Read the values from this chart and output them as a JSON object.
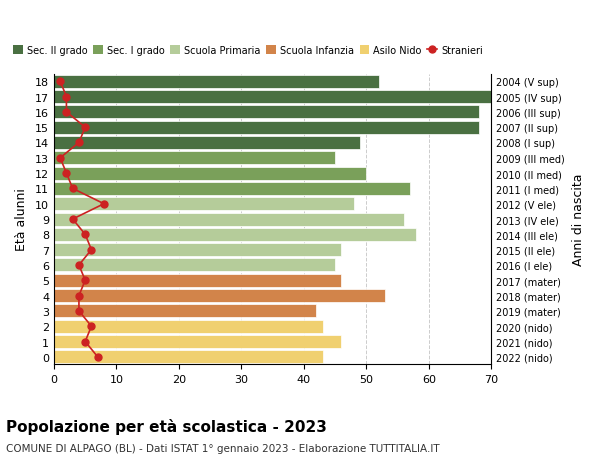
{
  "ages": [
    18,
    17,
    16,
    15,
    14,
    13,
    12,
    11,
    10,
    9,
    8,
    7,
    6,
    5,
    4,
    3,
    2,
    1,
    0
  ],
  "anni_nascita": [
    "2004 (V sup)",
    "2005 (IV sup)",
    "2006 (III sup)",
    "2007 (II sup)",
    "2008 (I sup)",
    "2009 (III med)",
    "2010 (II med)",
    "2011 (I med)",
    "2012 (V ele)",
    "2013 (IV ele)",
    "2014 (III ele)",
    "2015 (II ele)",
    "2016 (I ele)",
    "2017 (mater)",
    "2018 (mater)",
    "2019 (mater)",
    "2020 (nido)",
    "2021 (nido)",
    "2022 (nido)"
  ],
  "bar_values": [
    52,
    70,
    68,
    68,
    49,
    45,
    50,
    57,
    48,
    56,
    58,
    46,
    45,
    46,
    53,
    42,
    43,
    46,
    43
  ],
  "bar_colors": [
    "#4a7042",
    "#4a7042",
    "#4a7042",
    "#4a7042",
    "#4a7042",
    "#7aa05a",
    "#7aa05a",
    "#7aa05a",
    "#b5cc9a",
    "#b5cc9a",
    "#b5cc9a",
    "#b5cc9a",
    "#b5cc9a",
    "#d2844a",
    "#d2844a",
    "#d2844a",
    "#f0d070",
    "#f0d070",
    "#f0d070"
  ],
  "stranieri_values": [
    1,
    2,
    2,
    5,
    4,
    1,
    2,
    3,
    8,
    3,
    5,
    6,
    4,
    5,
    4,
    4,
    6,
    5,
    7
  ],
  "legend_labels": [
    "Sec. II grado",
    "Sec. I grado",
    "Scuola Primaria",
    "Scuola Infanzia",
    "Asilo Nido",
    "Stranieri"
  ],
  "legend_colors": [
    "#4a7042",
    "#7aa05a",
    "#b5cc9a",
    "#d2844a",
    "#f0d070",
    "#cc2222"
  ],
  "title": "Popolazione per età scolastica - 2023",
  "subtitle": "COMUNE DI ALPAGO (BL) - Dati ISTAT 1° gennaio 2023 - Elaborazione TUTTITALIA.IT",
  "ylabel_left": "Età alunni",
  "ylabel_right": "Anni di nascita",
  "xlim": [
    0,
    70
  ],
  "xticks": [
    0,
    10,
    20,
    30,
    40,
    50,
    60,
    70
  ],
  "background_color": "#ffffff",
  "grid_color": "#cccccc",
  "stranieri_color": "#cc2222",
  "stranieri_markersize": 5,
  "stranieri_linewidth": 1.2
}
